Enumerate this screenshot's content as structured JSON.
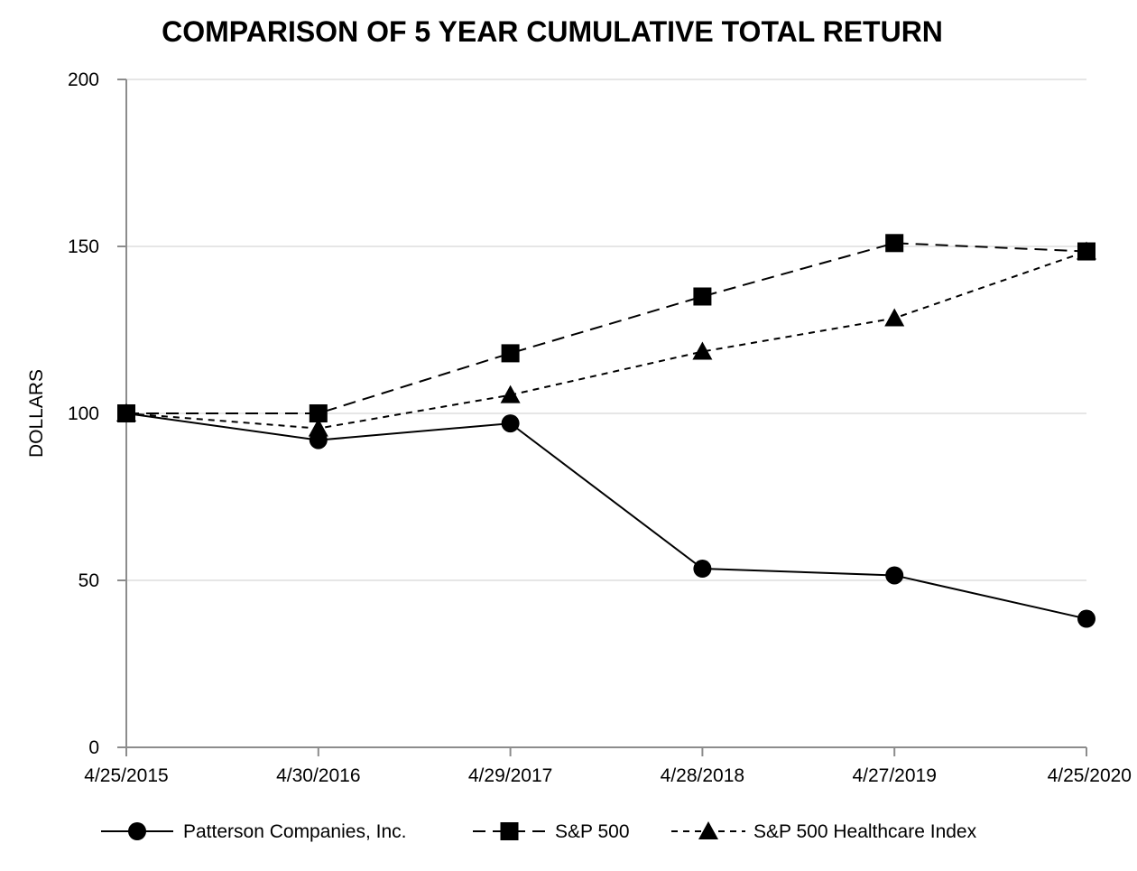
{
  "chart_data": {
    "type": "line",
    "title": "COMPARISON OF 5 YEAR CUMULATIVE TOTAL RETURN",
    "xlabel": "",
    "ylabel": "DOLLARS",
    "x": [
      "4/25/2015",
      "4/30/2016",
      "4/29/2017",
      "4/28/2018",
      "4/27/2019",
      "4/25/2020"
    ],
    "ylim": [
      0,
      200
    ],
    "yticks": [
      "0",
      "50",
      "100",
      "150",
      "200"
    ],
    "grid": "horizontal",
    "legend_position": "bottom",
    "series": [
      {
        "name": "Patterson Companies, Inc.",
        "marker": "circle",
        "line_style": "solid",
        "values": [
          100,
          92,
          97,
          53.5,
          51.5,
          38.5
        ]
      },
      {
        "name": "S&P 500",
        "marker": "square",
        "line_style": "dashed",
        "values": [
          100,
          100,
          118,
          135,
          151,
          148.5
        ]
      },
      {
        "name": "S&P 500 Healthcare Index",
        "marker": "triangle",
        "line_style": "dotted",
        "values": [
          100,
          95.5,
          105.5,
          118.5,
          128.5,
          148.5
        ]
      }
    ]
  }
}
